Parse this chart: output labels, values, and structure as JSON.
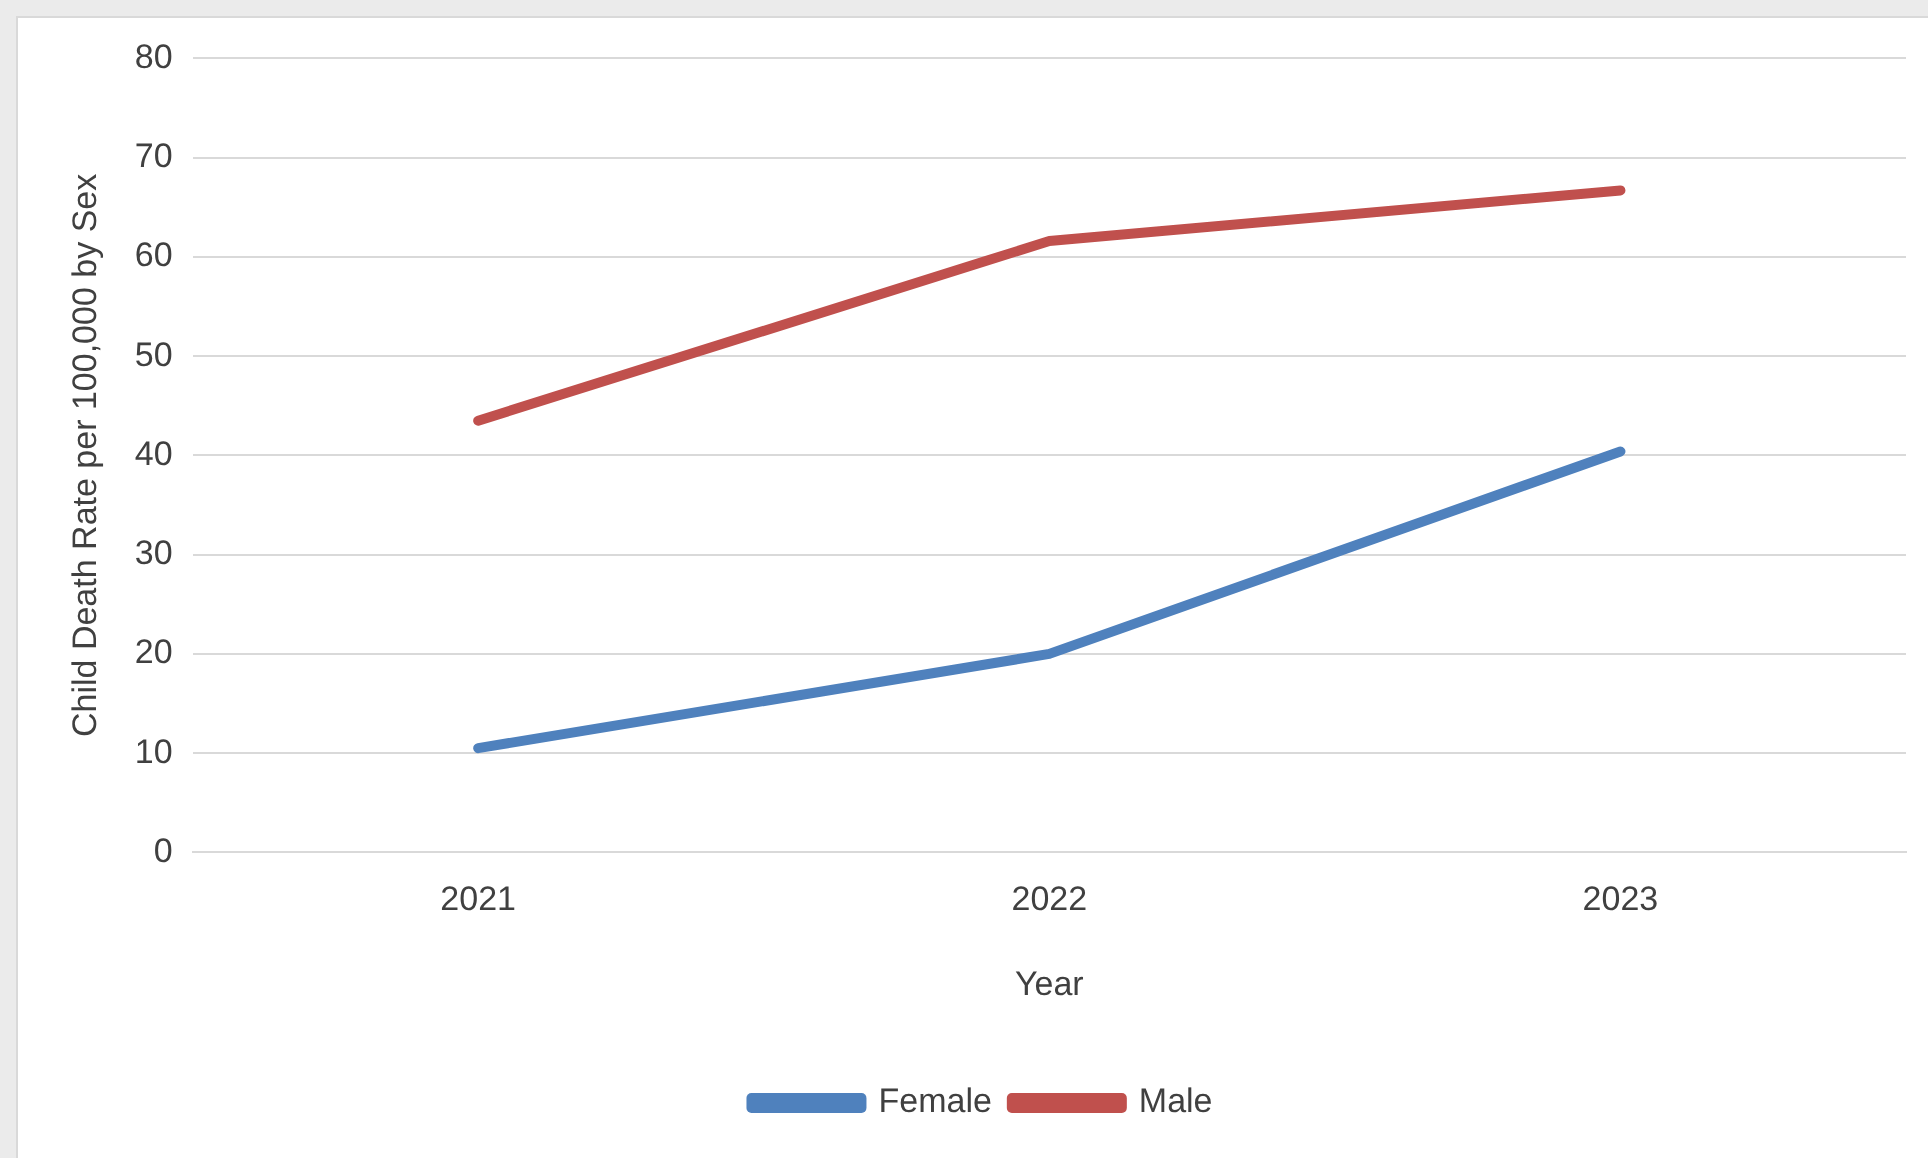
{
  "chart_data": {
    "type": "line",
    "xlabel": "Year",
    "ylabel": "Child Death Rate per 100,000 by Sex",
    "categories": [
      "2021",
      "2022",
      "2023"
    ],
    "series": [
      {
        "name": "Female",
        "color": "#4f81bd",
        "values": [
          10.5,
          20,
          40.4
        ]
      },
      {
        "name": "Male",
        "color": "#c0504d",
        "values": [
          43.5,
          61.6,
          66.7
        ]
      }
    ],
    "ylim": [
      0,
      80
    ],
    "yticks": [
      0,
      10,
      20,
      30,
      40,
      50,
      60,
      70,
      80
    ],
    "grid": "y",
    "legend": "bottom",
    "marker": "none",
    "line_style": "solid"
  }
}
